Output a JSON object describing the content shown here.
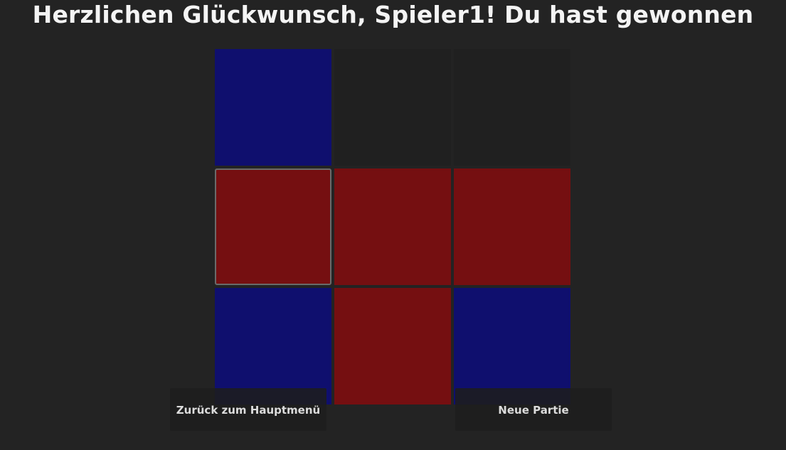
{
  "title": "Herzlichen Glückwunsch, Spieler1! Du hast gewonnen",
  "board": {
    "cells": [
      "x",
      "e",
      "e",
      "o",
      "o",
      "o",
      "x",
      "o",
      "x"
    ],
    "selected_index": 3,
    "colors": {
      "player_x": "#0f0f6e",
      "player_o": "#750f11",
      "empty": "#202020"
    }
  },
  "buttons": {
    "main_menu": "Zurück zum Hauptmenü",
    "new_game": "Neue Partie"
  }
}
